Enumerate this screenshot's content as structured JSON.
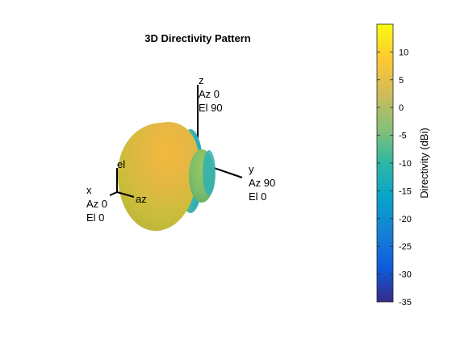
{
  "chart_data": {
    "type": "3d-surface",
    "title": "3D Directivity Pattern",
    "colorbar": {
      "label": "Directivity (dBi)",
      "min": -35,
      "max": 15,
      "ticks": [
        10,
        5,
        0,
        -5,
        -10,
        -15,
        -20,
        -25,
        -30,
        -35
      ],
      "tick_labels": [
        "10",
        "5",
        "0",
        "-5",
        "-10",
        "-15",
        "-20",
        "-25",
        "-30",
        "-35"
      ],
      "colormap": "parula",
      "colormap_stops": [
        "#352a87",
        "#0f5cdd",
        "#1481d6",
        "#06a4ca",
        "#2eb7a4",
        "#87bf77",
        "#d1bb59",
        "#fec832",
        "#f9fb0e"
      ]
    },
    "axes": {
      "x": {
        "lines": [
          "x",
          "Az 0",
          "El 0"
        ]
      },
      "y": {
        "lines": [
          "y",
          "Az 90",
          "El 0"
        ]
      },
      "z": {
        "lines": [
          "z",
          "Az 0",
          "El 90"
        ]
      }
    },
    "local_axes": {
      "el": "el",
      "az": "az"
    },
    "surface": {
      "main_lobe_direction": "x",
      "main_lobe_peak_dbi": 13,
      "back_lobe_direction": "y"
    }
  }
}
